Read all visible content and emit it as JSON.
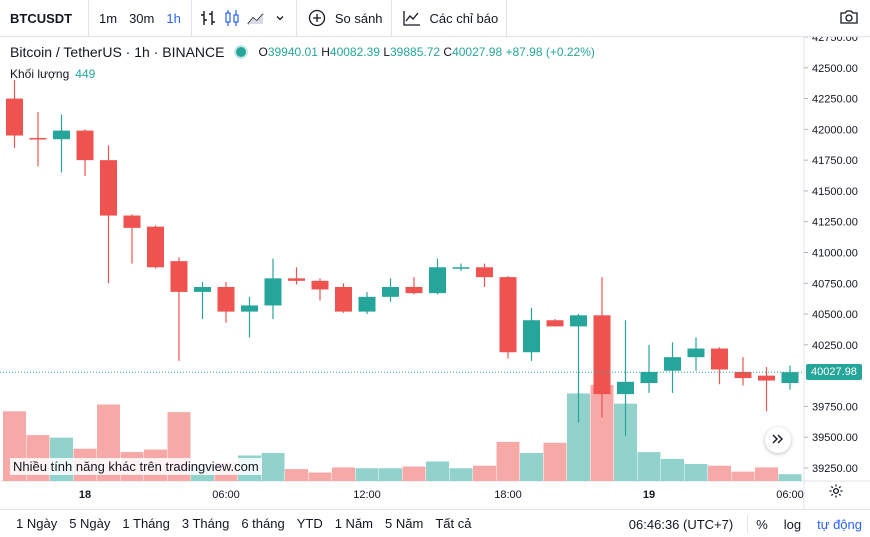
{
  "toolbar": {
    "symbol": "BTCUSDT",
    "intervals": [
      "1m",
      "30m",
      "1h"
    ],
    "active_interval": "1h",
    "compare_label": "So sánh",
    "indicators_label": "Các chỉ báo"
  },
  "legend": {
    "title": "Bitcoin / TetherUS · 1h · BINANCE",
    "open_key": "O",
    "open": "39940.01",
    "high_key": "H",
    "high": "40082.39",
    "low_key": "L",
    "low": "39885.72",
    "close_key": "C",
    "close": "40027.98",
    "change": "+87.98 (+0.22%)",
    "volume_label": "Khối lượng",
    "volume_value": "449"
  },
  "watermark": "Nhiều tính năng khác trên tradingview.com",
  "last_price": "40027.98",
  "colors": {
    "up": "#26a69a",
    "down": "#ef5350",
    "up_vol": "#92d2cc",
    "down_vol": "#f7a9a7",
    "accent": "#2962ff"
  },
  "bottombar": {
    "ranges": [
      "1 Ngày",
      "5 Ngày",
      "1 Tháng",
      "3 Tháng",
      "6 tháng",
      "YTD",
      "1 Năm",
      "5 Năm",
      "Tất cả"
    ],
    "clock": "06:46:36 (UTC+7)",
    "percent": "%",
    "log": "log",
    "auto": "tự động"
  },
  "chart_data": {
    "type": "candlestick",
    "price_axis": {
      "ylim": [
        39150,
        42750
      ],
      "ticks": [
        42750,
        42500,
        42250,
        42000,
        41750,
        41500,
        41250,
        41000,
        40750,
        40500,
        40250,
        39750,
        39500,
        39250
      ],
      "tick_labels": [
        "42750.00",
        "42500.00",
        "42250.00",
        "42000.00",
        "41750.00",
        "41500.00",
        "41250.00",
        "41000.00",
        "40750.00",
        "40500.00",
        "40250.00",
        "39750.00",
        "39500.00",
        "39250.00"
      ]
    },
    "time_axis": {
      "labels": [
        {
          "label": "18",
          "index": 3
        },
        {
          "label": "06:00",
          "index": 9
        },
        {
          "label": "12:00",
          "index": 15
        },
        {
          "label": "18:00",
          "index": 21
        },
        {
          "label": "19",
          "index": 27
        },
        {
          "label": "06:00",
          "index": 33
        }
      ]
    },
    "candles": [
      {
        "o": 42250,
        "h": 42400,
        "l": 41850,
        "c": 41950
      },
      {
        "o": 41930,
        "h": 42140,
        "l": 41700,
        "c": 41920
      },
      {
        "o": 41920,
        "h": 42120,
        "l": 41650,
        "c": 41990
      },
      {
        "o": 41990,
        "h": 42000,
        "l": 41620,
        "c": 41750
      },
      {
        "o": 41750,
        "h": 41870,
        "l": 40750,
        "c": 41300
      },
      {
        "o": 41300,
        "h": 41310,
        "l": 40910,
        "c": 41200
      },
      {
        "o": 41210,
        "h": 41220,
        "l": 40870,
        "c": 40880
      },
      {
        "o": 40930,
        "h": 40960,
        "l": 40120,
        "c": 40680
      },
      {
        "o": 40680,
        "h": 40760,
        "l": 40460,
        "c": 40720
      },
      {
        "o": 40720,
        "h": 40760,
        "l": 40430,
        "c": 40520
      },
      {
        "o": 40520,
        "h": 40640,
        "l": 40310,
        "c": 40570
      },
      {
        "o": 40570,
        "h": 40950,
        "l": 40460,
        "c": 40790
      },
      {
        "o": 40790,
        "h": 40880,
        "l": 40740,
        "c": 40770
      },
      {
        "o": 40770,
        "h": 40790,
        "l": 40610,
        "c": 40700
      },
      {
        "o": 40720,
        "h": 40750,
        "l": 40510,
        "c": 40520
      },
      {
        "o": 40520,
        "h": 40680,
        "l": 40500,
        "c": 40640
      },
      {
        "o": 40640,
        "h": 40790,
        "l": 40600,
        "c": 40720
      },
      {
        "o": 40720,
        "h": 40800,
        "l": 40660,
        "c": 40670
      },
      {
        "o": 40670,
        "h": 40950,
        "l": 40660,
        "c": 40880
      },
      {
        "o": 40870,
        "h": 40910,
        "l": 40850,
        "c": 40880
      },
      {
        "o": 40880,
        "h": 40910,
        "l": 40720,
        "c": 40800
      },
      {
        "o": 40800,
        "h": 40810,
        "l": 40140,
        "c": 40190
      },
      {
        "o": 40190,
        "h": 40550,
        "l": 40120,
        "c": 40450
      },
      {
        "o": 40450,
        "h": 40460,
        "l": 40400,
        "c": 40400
      },
      {
        "o": 40400,
        "h": 40500,
        "l": 39620,
        "c": 40490
      },
      {
        "o": 40490,
        "h": 40800,
        "l": 39660,
        "c": 39850
      },
      {
        "o": 39850,
        "h": 40450,
        "l": 39510,
        "c": 39950
      },
      {
        "o": 39940,
        "h": 40250,
        "l": 39860,
        "c": 40030
      },
      {
        "o": 40040,
        "h": 40270,
        "l": 39860,
        "c": 40150
      },
      {
        "o": 40150,
        "h": 40310,
        "l": 40040,
        "c": 40220
      },
      {
        "o": 40220,
        "h": 40230,
        "l": 39930,
        "c": 40050
      },
      {
        "o": 40030,
        "h": 40150,
        "l": 39920,
        "c": 39980
      },
      {
        "o": 40000,
        "h": 40070,
        "l": 39710,
        "c": 39960
      },
      {
        "o": 39940,
        "h": 40082,
        "l": 39886,
        "c": 40028
      }
    ],
    "volume": [
      82,
      54,
      51,
      38,
      90,
      34,
      37,
      81,
      18,
      22,
      30,
      33,
      14,
      10,
      16,
      15,
      15,
      17,
      23,
      15,
      18,
      46,
      33,
      45,
      103,
      113,
      91,
      34,
      26,
      20,
      18,
      11,
      16,
      8
    ]
  }
}
